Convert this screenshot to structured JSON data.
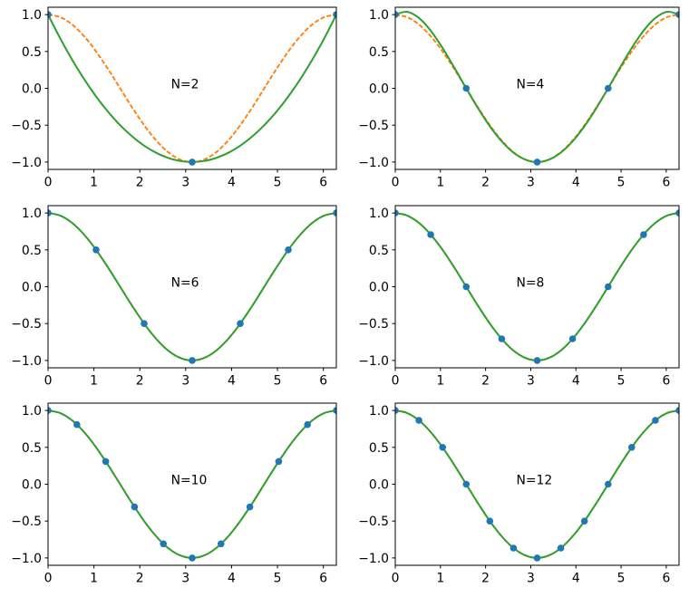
{
  "chart_data": {
    "type": "line",
    "layout_hint": {
      "grid_rows": 3,
      "grid_cols": 2,
      "grid_lines": "off",
      "legend": "none",
      "background": "#ffffff"
    },
    "xlim": [
      0,
      6.2832
    ],
    "ylim": [
      -1.1,
      1.1
    ],
    "xticks": [
      0,
      1,
      2,
      3,
      4,
      5,
      6
    ],
    "xtick_labels": [
      "0",
      "1",
      "2",
      "3",
      "4",
      "5",
      "6"
    ],
    "yticks": [
      1.0,
      0.5,
      0.0,
      -0.5,
      -1.0
    ],
    "ytick_labels": [
      "1.0",
      "0.5",
      "0.0",
      "−0.5",
      "−1.0"
    ],
    "colors": {
      "true_function": "#ff7f0e",
      "interpolant": "#2ca02c",
      "sample_points": "#1f77b4",
      "axes": "#000000"
    },
    "line_styles": {
      "true_function": "dashed",
      "interpolant": "solid",
      "sample_points": "filled-circle-markers"
    },
    "x_dense": [
      0,
      0.2618,
      0.5236,
      0.7854,
      1.0472,
      1.309,
      1.5708,
      1.8326,
      2.0944,
      2.3562,
      2.618,
      2.8798,
      3.1416,
      3.4034,
      3.6652,
      3.927,
      4.1888,
      4.4506,
      4.7124,
      4.9742,
      5.236,
      5.4978,
      5.7596,
      6.0214,
      6.2832
    ],
    "cos_dense": [
      1,
      0.9659,
      0.866,
      0.7071,
      0.5,
      0.2588,
      0,
      -0.2588,
      -0.5,
      -0.7071,
      -0.866,
      -0.9659,
      -1,
      -0.9659,
      -0.866,
      -0.7071,
      -0.5,
      -0.2588,
      0,
      0.2588,
      0.5,
      0.7071,
      0.866,
      0.9659,
      1
    ],
    "subplots": [
      {
        "label": "N=2",
        "N": 2,
        "nodes_x": [
          0,
          3.1416,
          6.2832
        ],
        "nodes_y": [
          1,
          -1,
          1
        ],
        "interpolant_y": [
          1,
          0.6806,
          0.3889,
          0.125,
          -0.1111,
          -0.3194,
          -0.5,
          -0.6528,
          -0.7778,
          -0.875,
          -0.9444,
          -0.9861,
          -1,
          -0.9861,
          -0.9444,
          -0.875,
          -0.7778,
          -0.6528,
          -0.5,
          -0.3194,
          -0.1111,
          0.125,
          0.3889,
          0.6806,
          1
        ]
      },
      {
        "label": "N=4",
        "N": 4,
        "nodes_x": [
          0,
          1.5708,
          3.1416,
          4.7124,
          6.2832
        ],
        "nodes_y": [
          1,
          0,
          -1,
          0,
          1
        ],
        "interpolant_y": [
          1,
          1.0382,
          0.9545,
          0.7811,
          0.5472,
          0.2791,
          0,
          -0.2702,
          -0.5144,
          -0.7188,
          -0.8724,
          -0.9677,
          -1,
          -0.9677,
          -0.8724,
          -0.7188,
          -0.5144,
          -0.2702,
          0,
          0.2791,
          0.5472,
          0.7811,
          0.9545,
          1.0382,
          1
        ]
      },
      {
        "label": "N=6",
        "N": 6,
        "nodes_x": [
          0,
          1.0472,
          2.0944,
          3.1416,
          4.1888,
          5.236,
          6.2832
        ],
        "nodes_y": [
          1,
          0.5,
          -0.5,
          -1,
          -0.5,
          0.5,
          1
        ],
        "interpolant_y": "cos"
      },
      {
        "label": "N=8",
        "N": 8,
        "nodes_x": [
          0,
          0.7854,
          1.5708,
          2.3562,
          3.1416,
          3.927,
          4.7124,
          5.4978,
          6.2832
        ],
        "nodes_y": [
          1,
          0.7071,
          0,
          -0.7071,
          -1,
          -0.7071,
          0,
          0.7071,
          1
        ],
        "interpolant_y": "cos"
      },
      {
        "label": "N=10",
        "N": 10,
        "nodes_x": [
          0,
          0.6283,
          1.2566,
          1.885,
          2.5133,
          3.1416,
          3.7699,
          4.3982,
          5.0265,
          5.6549,
          6.2832
        ],
        "nodes_y": [
          1,
          0.809,
          0.309,
          -0.309,
          -0.809,
          -1,
          -0.809,
          -0.309,
          0.309,
          0.809,
          1
        ],
        "interpolant_y": "cos"
      },
      {
        "label": "N=12",
        "N": 12,
        "nodes_x": [
          0,
          0.5236,
          1.0472,
          1.5708,
          2.0944,
          2.618,
          3.1416,
          3.6652,
          4.1888,
          4.7124,
          5.236,
          5.7596,
          6.2832
        ],
        "nodes_y": [
          1,
          0.866,
          0.5,
          0,
          -0.5,
          -0.866,
          -1,
          -0.866,
          -0.5,
          0,
          0.5,
          0.866,
          1
        ],
        "interpolant_y": "cos"
      }
    ]
  }
}
